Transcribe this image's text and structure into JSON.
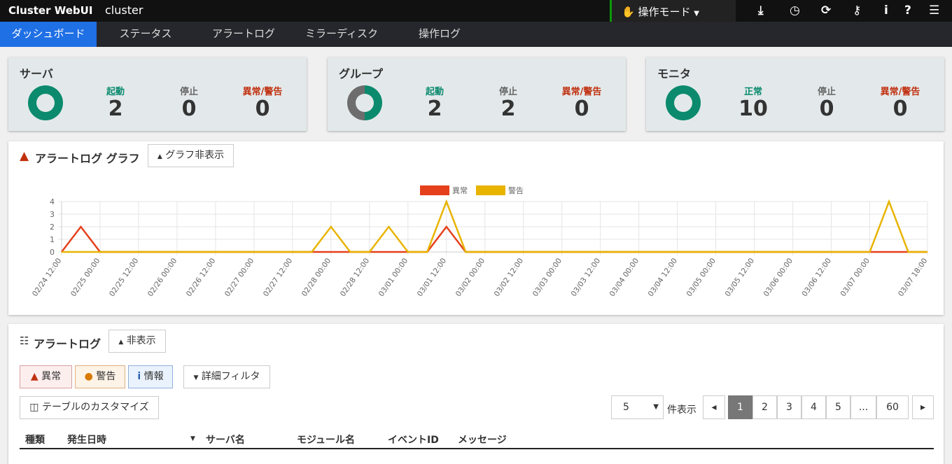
{
  "header": {
    "brand": "Cluster WebUI",
    "cluster": "cluster",
    "mode": "操作モード",
    "icons": [
      "download-icon",
      "clock-icon",
      "refresh-icon",
      "key-icon",
      "info-icon",
      "help-icon",
      "list-info-icon"
    ]
  },
  "nav": [
    "ダッシュボード",
    "ステータス",
    "アラートログ",
    "ミラーディスク",
    "操作ログ"
  ],
  "cards": [
    {
      "title": "サーバ",
      "labels": [
        "起動",
        "停止",
        "異常/警告"
      ],
      "values": [
        "2",
        "0",
        "0"
      ]
    },
    {
      "title": "グループ",
      "labels": [
        "起動",
        "停止",
        "異常/警告"
      ],
      "values": [
        "2",
        "2",
        "0"
      ]
    },
    {
      "title": "モニタ",
      "labels": [
        "正常",
        "停止",
        "異常/警告"
      ],
      "values": [
        "10",
        "0",
        "0"
      ]
    }
  ],
  "colors": {
    "ok": "#0b8a6e",
    "stopped": "#6d6d6d",
    "error": "#e5401c",
    "warning": "#e8b400",
    "accent": "#1f6fe5"
  },
  "graph": {
    "title": "アラートログ グラフ",
    "hide_button": "グラフ非表示"
  },
  "chart_data": {
    "type": "line",
    "x": [
      "02/24 12:00",
      "02/24 18:00",
      "02/25 00:00",
      "02/25 06:00",
      "02/25 12:00",
      "02/25 18:00",
      "02/26 00:00",
      "02/26 06:00",
      "02/26 12:00",
      "02/26 18:00",
      "02/27 00:00",
      "02/27 06:00",
      "02/27 12:00",
      "02/27 18:00",
      "02/28 00:00",
      "02/28 06:00",
      "02/28 12:00",
      "02/28 18:00",
      "03/01 00:00",
      "03/01 06:00",
      "03/01 12:00",
      "03/01 18:00",
      "03/02 00:00",
      "03/02 06:00",
      "03/02 12:00",
      "03/02 18:00",
      "03/03 00:00",
      "03/03 06:00",
      "03/03 12:00",
      "03/03 18:00",
      "03/04 00:00",
      "03/04 06:00",
      "03/04 12:00",
      "03/04 18:00",
      "03/05 00:00",
      "03/05 06:00",
      "03/05 12:00",
      "03/05 18:00",
      "03/06 00:00",
      "03/06 06:00",
      "03/06 12:00",
      "03/06 18:00",
      "03/07 00:00",
      "03/07 06:00",
      "03/07 12:00",
      "03/07 18:00"
    ],
    "tick_labels": [
      "02/24 12:00",
      "02/25 00:00",
      "02/25 12:00",
      "02/26 00:00",
      "02/26 12:00",
      "02/27 00:00",
      "02/27 12:00",
      "02/28 00:00",
      "02/28 12:00",
      "03/01 00:00",
      "03/01 12:00",
      "03/02 00:00",
      "03/02 12:00",
      "03/03 00:00",
      "03/03 12:00",
      "03/04 00:00",
      "03/04 12:00",
      "03/05 00:00",
      "03/05 12:00",
      "03/06 00:00",
      "03/06 12:00",
      "03/07 00:00",
      "03/07 18:00"
    ],
    "series": [
      {
        "name": "異常",
        "color": "#e5401c",
        "values": [
          0,
          2,
          0,
          0,
          0,
          0,
          0,
          0,
          0,
          0,
          0,
          0,
          0,
          0,
          0,
          0,
          0,
          0,
          0,
          0,
          2,
          0,
          0,
          0,
          0,
          0,
          0,
          0,
          0,
          0,
          0,
          0,
          0,
          0,
          0,
          0,
          0,
          0,
          0,
          0,
          0,
          0,
          0,
          0,
          0,
          0
        ]
      },
      {
        "name": "警告",
        "color": "#e8b400",
        "values": [
          0,
          0,
          0,
          0,
          0,
          0,
          0,
          0,
          0,
          0,
          0,
          0,
          0,
          0,
          2,
          0,
          0,
          2,
          0,
          0,
          4,
          0,
          0,
          0,
          0,
          0,
          0,
          0,
          0,
          0,
          0,
          0,
          0,
          0,
          0,
          0,
          0,
          0,
          0,
          0,
          0,
          0,
          0,
          4,
          0,
          0
        ]
      }
    ],
    "ylim": [
      0,
      4
    ],
    "yticks": [
      0,
      1,
      2,
      3,
      4
    ],
    "grid": true,
    "legend": "top-center"
  },
  "alertlog": {
    "title": "アラートログ",
    "hide_button": "非表示",
    "filters": [
      "異常",
      "警告",
      "情報"
    ],
    "detail_filter": "詳細フィルタ",
    "customize": "テーブルのカスタマイズ",
    "page_size": "5",
    "page_size_label": "件表示",
    "pages": [
      "1",
      "2",
      "3",
      "4",
      "5",
      "...",
      "60"
    ],
    "current_page": "1",
    "columns": [
      "種類",
      "発生日時",
      "サーバ名",
      "モジュール名",
      "イベントID",
      "メッセージ"
    ]
  }
}
